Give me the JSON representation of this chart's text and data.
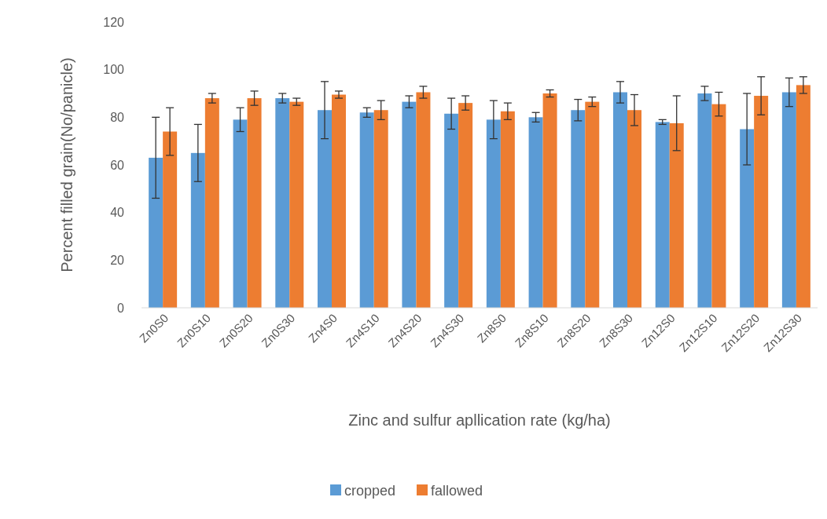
{
  "chart_data": {
    "type": "bar",
    "xlabel": "Zinc and sulfur apllication rate (kg/ha)",
    "ylabel": "Percent filled grain(No/panicle)",
    "categories": [
      "Zn0S0",
      "Zn0S10",
      "Zn0S20",
      "Zn0S30",
      "Zn4S0",
      "Zn4S10",
      "Zn4S20",
      "Zn4S30",
      "Zn8S0",
      "Zn8S10",
      "Zn8S20",
      "Zn8S30",
      "Zn12S0",
      "Zn12S10",
      "Zn12S20",
      "Zn12S30"
    ],
    "series": [
      {
        "name": "cropped",
        "color": "#5b9bd5",
        "values": [
          63,
          65,
          79,
          88,
          83,
          82,
          86.5,
          81.5,
          79,
          80,
          83,
          90.5,
          78,
          90,
          75,
          90.5
        ],
        "errors": [
          17,
          12,
          5,
          2,
          12,
          2,
          2.5,
          6.5,
          8,
          2,
          4.5,
          4.5,
          1,
          3,
          15,
          6
        ]
      },
      {
        "name": "fallowed",
        "color": "#ed7d31",
        "values": [
          74,
          88,
          88,
          86.5,
          89.5,
          83,
          90.5,
          86,
          82.5,
          90,
          86.5,
          83,
          77.5,
          85.5,
          89,
          93.5
        ],
        "errors": [
          10,
          2,
          3,
          1.5,
          1.5,
          4,
          2.5,
          3,
          3.5,
          1.5,
          2,
          6.5,
          11.5,
          5,
          8,
          3.5
        ]
      }
    ],
    "ylim": [
      0,
      120
    ],
    "yticks": [
      0,
      20,
      40,
      60,
      80,
      100,
      120
    ],
    "grid": false,
    "legend": "bottom"
  }
}
